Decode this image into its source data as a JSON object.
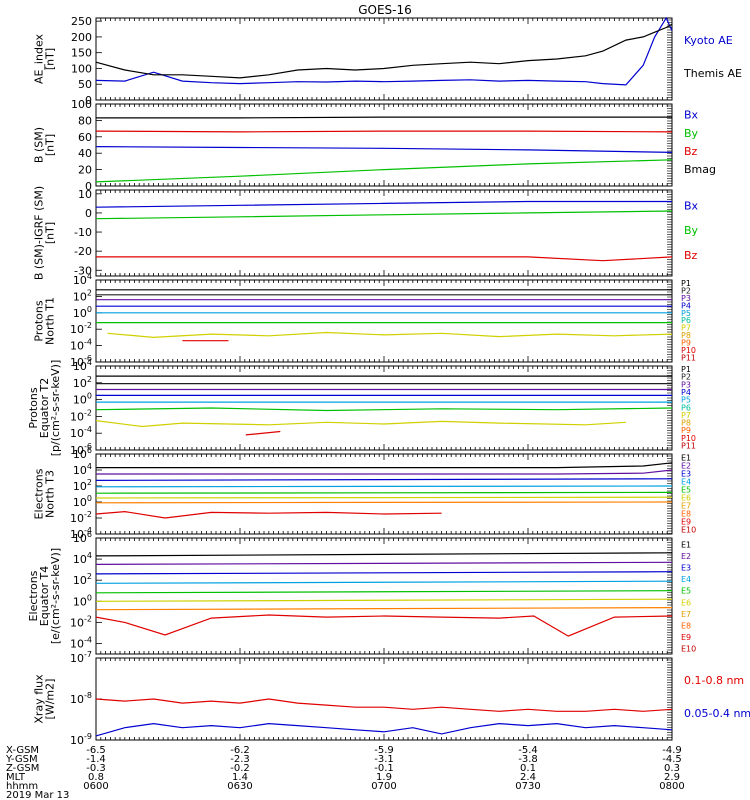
{
  "title": "GOES-16",
  "chart_data": [
    {
      "type": "line",
      "ylabel": [
        "AE_index",
        "[nT]"
      ],
      "yscale": "linear",
      "ylim": [
        0,
        260
      ],
      "yticks": [
        0,
        50,
        100,
        150,
        200,
        250
      ],
      "ytick_labels": [
        "0",
        "50",
        "100",
        "150",
        "200",
        "250"
      ],
      "series": [
        {
          "name": "Kyoto AE",
          "color": "#0000d0",
          "x": [
            0,
            5,
            10,
            15,
            20,
            25,
            30,
            35,
            40,
            45,
            50,
            55,
            60,
            65,
            70,
            75,
            80,
            85,
            88,
            92,
            95,
            97,
            99,
            100
          ],
          "y": [
            62,
            60,
            88,
            60,
            55,
            52,
            55,
            58,
            57,
            60,
            58,
            60,
            62,
            64,
            60,
            62,
            60,
            58,
            52,
            48,
            110,
            200,
            260,
            220
          ]
        },
        {
          "name": "Themis AE",
          "color": "#000000",
          "x": [
            0,
            5,
            10,
            15,
            20,
            25,
            30,
            35,
            40,
            45,
            50,
            55,
            60,
            65,
            70,
            75,
            80,
            85,
            88,
            92,
            95,
            97,
            99,
            100
          ],
          "y": [
            120,
            95,
            80,
            80,
            75,
            70,
            80,
            95,
            100,
            95,
            100,
            110,
            115,
            120,
            115,
            125,
            130,
            140,
            155,
            190,
            200,
            215,
            230,
            240
          ]
        }
      ]
    },
    {
      "type": "line",
      "ylabel": [
        "B (SM)",
        "[nT]"
      ],
      "yscale": "linear",
      "ylim": [
        0,
        100
      ],
      "yticks": [
        0,
        20,
        40,
        60,
        80,
        100
      ],
      "ytick_labels": [
        "0",
        "20",
        "40",
        "60",
        "80",
        "100"
      ],
      "series": [
        {
          "name": "Bx",
          "color": "#0000d0",
          "x": [
            0,
            25,
            50,
            75,
            100
          ],
          "y": [
            48,
            47,
            46,
            44,
            41
          ]
        },
        {
          "name": "By",
          "color": "#00c000",
          "x": [
            0,
            25,
            50,
            75,
            100
          ],
          "y": [
            5,
            12,
            20,
            27,
            32
          ]
        },
        {
          "name": "Bz",
          "color": "#e00000",
          "x": [
            0,
            25,
            50,
            75,
            100
          ],
          "y": [
            67,
            66,
            67,
            67,
            66
          ]
        },
        {
          "name": "Bmag",
          "color": "#000000",
          "x": [
            0,
            25,
            50,
            75,
            100
          ],
          "y": [
            83,
            83,
            84,
            84,
            84
          ]
        }
      ]
    },
    {
      "type": "line",
      "ylabel": [
        "B (SM)-IGRF (SM)",
        "[nT]"
      ],
      "yscale": "linear",
      "ylim": [
        -33,
        12
      ],
      "yticks": [
        -30,
        -20,
        -10,
        0,
        10
      ],
      "ytick_labels": [
        "-30",
        "-20",
        "-10",
        "0",
        "10"
      ],
      "series": [
        {
          "name": "Bx",
          "color": "#0000d0",
          "x": [
            0,
            25,
            50,
            75,
            100
          ],
          "y": [
            3,
            4,
            5,
            6,
            6
          ]
        },
        {
          "name": "By",
          "color": "#00c000",
          "x": [
            0,
            25,
            50,
            75,
            100
          ],
          "y": [
            -3,
            -2,
            -1,
            0,
            1
          ]
        },
        {
          "name": "Bz",
          "color": "#e00000",
          "x": [
            0,
            25,
            50,
            75,
            88,
            100
          ],
          "y": [
            -23,
            -23,
            -23,
            -23,
            -25,
            -23
          ]
        }
      ]
    },
    {
      "type": "line",
      "ylabel": [
        "Protons",
        "North T1"
      ],
      "yscale": "log",
      "ylim": [
        -6,
        4
      ],
      "yticks": [
        -6,
        -4,
        -2,
        0,
        2,
        4
      ],
      "ytick_labels": [
        "10^-6",
        "10^-4",
        "10^-2",
        "10^0",
        "10^2",
        "10^4"
      ],
      "legend": [
        "P1",
        "P2",
        "P3",
        "P4",
        "P5",
        "P6",
        "P7",
        "P8",
        "P9",
        "P10",
        "P11"
      ],
      "series": [
        {
          "name": "P1",
          "color": "#000000",
          "x": [
            0,
            100
          ],
          "y": [
            2.8,
            2.8
          ]
        },
        {
          "name": "P2",
          "color": "#202020",
          "x": [
            0,
            100
          ],
          "y": [
            2.2,
            2.2
          ]
        },
        {
          "name": "P3",
          "color": "#6010a0",
          "x": [
            0,
            100
          ],
          "y": [
            1.6,
            1.6
          ]
        },
        {
          "name": "P4",
          "color": "#0000d0",
          "x": [
            0,
            100
          ],
          "y": [
            0.8,
            0.8
          ]
        },
        {
          "name": "P5",
          "color": "#00a0e0",
          "x": [
            0,
            100
          ],
          "y": [
            0,
            0
          ]
        },
        {
          "name": "P6",
          "color": "#00c000",
          "x": [
            0,
            100
          ],
          "y": [
            -1.2,
            -1.2
          ]
        },
        {
          "name": "P7",
          "color": "#d0d000",
          "x": [
            2,
            10,
            20,
            30,
            40,
            50,
            60,
            70,
            80,
            90,
            100
          ],
          "y": [
            -2.5,
            -3.0,
            -2.6,
            -2.8,
            -2.4,
            -2.7,
            -2.5,
            -2.9,
            -2.6,
            -2.8,
            -2.6
          ]
        },
        {
          "name": "P9",
          "color": "#e00000",
          "x": [
            15,
            23
          ],
          "y": [
            -3.4,
            -3.4
          ]
        }
      ]
    },
    {
      "type": "line",
      "ylabel": [
        "Protons",
        "Equator T2",
        "[p/(cm²-s-sr-keV)]"
      ],
      "yscale": "log",
      "ylim": [
        -6,
        4
      ],
      "yticks": [
        -6,
        -4,
        -2,
        0,
        2,
        4
      ],
      "ytick_labels": [
        "10^-6",
        "10^-4",
        "10^-2",
        "10^0",
        "10^2",
        "10^4"
      ],
      "legend": [
        "P1",
        "P2",
        "P3",
        "P4",
        "P5",
        "P6",
        "P7",
        "P8",
        "P9",
        "P10",
        "P11"
      ],
      "series": [
        {
          "name": "P1",
          "color": "#000000",
          "x": [
            0,
            100
          ],
          "y": [
            2.8,
            2.8
          ]
        },
        {
          "name": "P2",
          "color": "#202020",
          "x": [
            0,
            100
          ],
          "y": [
            1.9,
            1.9
          ]
        },
        {
          "name": "P3",
          "color": "#6010a0",
          "x": [
            0,
            100
          ],
          "y": [
            1.2,
            1.2
          ]
        },
        {
          "name": "P4",
          "color": "#0000d0",
          "x": [
            0,
            100
          ],
          "y": [
            0.5,
            0.5
          ]
        },
        {
          "name": "P5",
          "color": "#00a0e0",
          "x": [
            0,
            100
          ],
          "y": [
            -0.3,
            -0.3
          ]
        },
        {
          "name": "P6",
          "color": "#00c000",
          "x": [
            0,
            20,
            40,
            60,
            80,
            100
          ],
          "y": [
            -1.2,
            -1.0,
            -1.3,
            -1.1,
            -1.2,
            -1.0
          ]
        },
        {
          "name": "P7",
          "color": "#d0d000",
          "x": [
            0,
            8,
            15,
            30,
            40,
            50,
            60,
            70,
            85,
            92
          ],
          "y": [
            -2.5,
            -3.2,
            -2.8,
            -3.0,
            -2.7,
            -2.9,
            -2.6,
            -2.8,
            -3.0,
            -2.7
          ]
        },
        {
          "name": "P10",
          "color": "#e00000",
          "x": [
            26,
            32
          ],
          "y": [
            -4.2,
            -3.8
          ]
        }
      ]
    },
    {
      "type": "line",
      "ylabel": [
        "Electrons",
        "North T3"
      ],
      "yscale": "log",
      "ylim": [
        -4,
        6
      ],
      "yticks": [
        -4,
        -2,
        0,
        2,
        4,
        6
      ],
      "ytick_labels": [
        "10^-4",
        "10^-2",
        "10^0",
        "10^2",
        "10^4",
        "10^6"
      ],
      "legend": [
        "E1",
        "E2",
        "E3",
        "E4",
        "E5",
        "E6",
        "E7",
        "E8",
        "E9",
        "E10"
      ],
      "series": [
        {
          "name": "E1",
          "color": "#000000",
          "x": [
            0,
            80,
            95,
            100
          ],
          "y": [
            4.3,
            4.3,
            4.5,
            4.9
          ]
        },
        {
          "name": "E2",
          "color": "#6010a0",
          "x": [
            0,
            80,
            95,
            100
          ],
          "y": [
            3.5,
            3.5,
            3.6,
            4.0
          ]
        },
        {
          "name": "E3",
          "color": "#0000d0",
          "x": [
            0,
            100
          ],
          "y": [
            2.7,
            2.9
          ]
        },
        {
          "name": "E4",
          "color": "#00a0e0",
          "x": [
            0,
            100
          ],
          "y": [
            1.9,
            2.0
          ]
        },
        {
          "name": "E5",
          "color": "#00c000",
          "x": [
            0,
            100
          ],
          "y": [
            1.1,
            1.2
          ]
        },
        {
          "name": "E6",
          "color": "#d0d000",
          "x": [
            0,
            100
          ],
          "y": [
            0.5,
            0.6
          ]
        },
        {
          "name": "E7",
          "color": "#ff8000",
          "x": [
            0,
            100
          ],
          "y": [
            -0.1,
            0
          ]
        },
        {
          "name": "E8",
          "color": "#e00000",
          "x": [
            0,
            5,
            12,
            20,
            30,
            40,
            50,
            60
          ],
          "y": [
            -1.5,
            -1.2,
            -2.0,
            -1.3,
            -1.4,
            -1.3,
            -1.5,
            -1.4
          ]
        }
      ]
    },
    {
      "type": "line",
      "ylabel": [
        "Electrons",
        "Equator T4",
        "[e/(cm²-s-sr-keV)]"
      ],
      "yscale": "log",
      "ylim": [
        -5,
        6
      ],
      "yticks": [
        -4,
        -2,
        0,
        2,
        4,
        6
      ],
      "ytick_labels": [
        "10^-4",
        "10^-2",
        "10^0",
        "10^2",
        "10^4",
        "10^6"
      ],
      "legend": [
        "E1",
        "E2",
        "E3",
        "E4",
        "E5",
        "E6",
        "E7",
        "E8",
        "E9",
        "E10"
      ],
      "series": [
        {
          "name": "E1",
          "color": "#000000",
          "x": [
            0,
            100
          ],
          "y": [
            4.3,
            4.6
          ]
        },
        {
          "name": "E2",
          "color": "#6010a0",
          "x": [
            0,
            100
          ],
          "y": [
            3.5,
            3.7
          ]
        },
        {
          "name": "E3",
          "color": "#0000d0",
          "x": [
            0,
            100
          ],
          "y": [
            2.6,
            2.8
          ]
        },
        {
          "name": "E4",
          "color": "#00a0e0",
          "x": [
            0,
            100
          ],
          "y": [
            1.7,
            1.9
          ]
        },
        {
          "name": "E5",
          "color": "#00c000",
          "x": [
            0,
            100
          ],
          "y": [
            0.8,
            1.0
          ]
        },
        {
          "name": "E6",
          "color": "#d0d000",
          "x": [
            0,
            100
          ],
          "y": [
            0.0,
            0.2
          ]
        },
        {
          "name": "E7",
          "color": "#ff8000",
          "x": [
            0,
            100
          ],
          "y": [
            -0.8,
            -0.6
          ]
        },
        {
          "name": "E8",
          "color": "#e00000",
          "x": [
            0,
            5,
            12,
            20,
            30,
            40,
            50,
            60,
            70,
            76,
            82,
            90,
            100
          ],
          "y": [
            -1.5,
            -2.0,
            -3.2,
            -1.6,
            -1.3,
            -1.5,
            -1.4,
            -1.5,
            -1.6,
            -1.4,
            -3.3,
            -1.5,
            -1.4
          ]
        }
      ]
    },
    {
      "type": "line",
      "ylabel": [
        "Xray flux",
        "[W/m2]"
      ],
      "yscale": "log",
      "ylim": [
        -9,
        -7
      ],
      "yticks": [
        -9,
        -8,
        -7
      ],
      "ytick_labels": [
        "10^-9",
        "10^-8",
        "10^-7"
      ],
      "series": [
        {
          "name": "0.1-0.8 nm",
          "color": "#e00000",
          "x": [
            0,
            5,
            10,
            15,
            20,
            25,
            30,
            35,
            40,
            45,
            50,
            55,
            60,
            65,
            70,
            75,
            80,
            85,
            90,
            95,
            100
          ],
          "y": [
            -8.0,
            -8.05,
            -8.0,
            -8.1,
            -8.05,
            -8.1,
            -8.0,
            -8.1,
            -8.15,
            -8.2,
            -8.2,
            -8.25,
            -8.2,
            -8.25,
            -8.3,
            -8.25,
            -8.3,
            -8.3,
            -8.25,
            -8.3,
            -8.25
          ]
        },
        {
          "name": "0.05-0.4 nm",
          "color": "#0000d0",
          "x": [
            0,
            5,
            10,
            15,
            20,
            25,
            30,
            35,
            40,
            45,
            50,
            55,
            60,
            65,
            70,
            75,
            80,
            85,
            90,
            95,
            100
          ],
          "y": [
            -8.9,
            -8.7,
            -8.6,
            -8.7,
            -8.65,
            -8.7,
            -8.6,
            -8.65,
            -8.7,
            -8.75,
            -8.8,
            -8.7,
            -8.85,
            -8.7,
            -8.6,
            -8.65,
            -8.6,
            -8.7,
            -8.65,
            -8.7,
            -8.75
          ]
        }
      ]
    }
  ],
  "legends": [
    [
      {
        "label": "Kyoto AE",
        "color": "#0000d0"
      },
      {
        "label": "Themis AE",
        "color": "#000000"
      }
    ],
    [
      {
        "label": "Bx",
        "color": "#0000d0"
      },
      {
        "label": "By",
        "color": "#00c000"
      },
      {
        "label": "Bz",
        "color": "#e00000"
      },
      {
        "label": "Bmag",
        "color": "#000000"
      }
    ],
    [
      {
        "label": "Bx",
        "color": "#0000d0"
      },
      {
        "label": "By",
        "color": "#00c000"
      },
      {
        "label": "Bz",
        "color": "#e00000"
      }
    ],
    [
      {
        "label": "0.1-0.8 nm",
        "color": "#e00000"
      },
      {
        "label": "0.05-0.4 nm",
        "color": "#0000d0"
      }
    ]
  ],
  "channel_colors": {
    "P": [
      "#000000",
      "#202020",
      "#6010a0",
      "#0000d0",
      "#00a0e0",
      "#00c0a0",
      "#d0d000",
      "#e0a000",
      "#ff6000",
      "#e00000",
      "#c00000"
    ],
    "E": [
      "#000000",
      "#6010a0",
      "#0000d0",
      "#00a0e0",
      "#00c000",
      "#d0d000",
      "#e0a000",
      "#ff6000",
      "#e00000",
      "#c00000"
    ]
  },
  "x_axis": {
    "tick_columns": [
      {
        "xgsm": "-6.5",
        "ygsm": "-1.4",
        "zgsm": "-0.3",
        "mlt": "0.8",
        "hhmm": "0600"
      },
      {
        "xgsm": "-6.2",
        "ygsm": "-2.3",
        "zgsm": "-0.2",
        "mlt": "1.4",
        "hhmm": "0630"
      },
      {
        "xgsm": "-5.9",
        "ygsm": "-3.1",
        "zgsm": "-0.1",
        "mlt": "1.9",
        "hhmm": "0700"
      },
      {
        "xgsm": "-5.4",
        "ygsm": "-3.8",
        "zgsm": "0.1",
        "mlt": "2.4",
        "hhmm": "0730"
      },
      {
        "xgsm": "-4.9",
        "ygsm": "-4.5",
        "zgsm": "0.3",
        "mlt": "2.9",
        "hhmm": "0800"
      }
    ],
    "row_labels": [
      "X-GSM",
      "Y-GSM",
      "Z-GSM",
      "MLT",
      "hhmm"
    ],
    "date": "2019 Mar 13"
  }
}
